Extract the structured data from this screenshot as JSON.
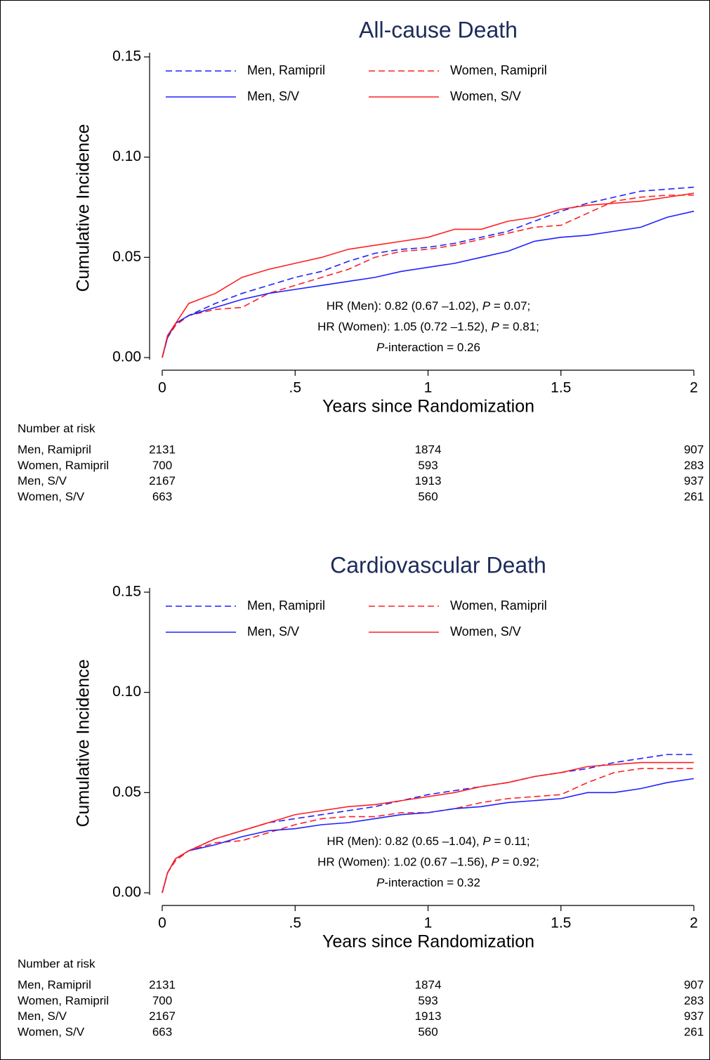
{
  "chart_data": [
    {
      "type": "line",
      "title": "All-cause Death",
      "xlabel": "Years since Randomization",
      "ylabel": "Cumulative Incidence",
      "x": [
        0,
        0.02,
        0.05,
        0.1,
        0.2,
        0.3,
        0.4,
        0.5,
        0.6,
        0.7,
        0.8,
        0.9,
        1.0,
        1.1,
        1.2,
        1.3,
        1.4,
        1.5,
        1.6,
        1.7,
        1.8,
        1.9,
        2.0
      ],
      "series": [
        {
          "name": "Men, Ramipril",
          "color": "#2020ff",
          "linestyle": "dashed",
          "values": [
            0,
            0.01,
            0.017,
            0.021,
            0.027,
            0.032,
            0.036,
            0.04,
            0.043,
            0.048,
            0.052,
            0.054,
            0.055,
            0.057,
            0.06,
            0.063,
            0.068,
            0.073,
            0.077,
            0.08,
            0.083,
            0.084,
            0.085
          ]
        },
        {
          "name": "Women, Ramipril",
          "color": "#ff2020",
          "linestyle": "dashed",
          "values": [
            0,
            0.01,
            0.016,
            0.021,
            0.024,
            0.025,
            0.032,
            0.036,
            0.04,
            0.044,
            0.05,
            0.053,
            0.054,
            0.056,
            0.059,
            0.062,
            0.065,
            0.066,
            0.072,
            0.078,
            0.08,
            0.081,
            0.081
          ]
        },
        {
          "name": "Men, S/V",
          "color": "#2020ff",
          "linestyle": "solid",
          "values": [
            0,
            0.01,
            0.017,
            0.021,
            0.025,
            0.029,
            0.032,
            0.034,
            0.036,
            0.038,
            0.04,
            0.043,
            0.045,
            0.047,
            0.05,
            0.053,
            0.058,
            0.06,
            0.061,
            0.063,
            0.065,
            0.07,
            0.073
          ]
        },
        {
          "name": "Women, S/V",
          "color": "#ff2020",
          "linestyle": "solid",
          "values": [
            0,
            0.011,
            0.017,
            0.027,
            0.032,
            0.04,
            0.044,
            0.047,
            0.05,
            0.054,
            0.056,
            0.058,
            0.06,
            0.064,
            0.064,
            0.068,
            0.07,
            0.074,
            0.076,
            0.077,
            0.078,
            0.08,
            0.082
          ]
        }
      ],
      "xlim": [
        0,
        2
      ],
      "ylim": [
        0,
        0.15
      ],
      "xticks": [
        0,
        {
          "value": 0.5,
          "label": ".5"
        },
        1,
        1.5,
        2
      ],
      "yticks": [
        {
          "value": 0,
          "label": "0.00"
        },
        {
          "value": 0.05,
          "label": "0.05"
        },
        {
          "value": 0.1,
          "label": "0.10"
        },
        {
          "value": 0.15,
          "label": "0.15"
        }
      ],
      "annotation": [
        [
          {
            "text": "HR (Men): 0.82 (0.67 –1.02), "
          },
          {
            "text": "P",
            "italic": true
          },
          {
            "text": " = 0.07;"
          }
        ],
        [
          {
            "text": "HR (Women): 1.05 (0.72 –1.52), "
          },
          {
            "text": "P",
            "italic": true
          },
          {
            "text": " = 0.81;"
          }
        ],
        [
          {
            "text": "P",
            "italic": true
          },
          {
            "text": "-interaction = 0.26"
          }
        ]
      ],
      "risk_table": {
        "title": "Number at risk",
        "times": [
          0,
          1,
          2
        ],
        "rows": [
          {
            "name": "Men, Ramipril",
            "values": [
              2131,
              1874,
              907
            ]
          },
          {
            "name": "Women, Ramipril",
            "values": [
              700,
              593,
              283
            ]
          },
          {
            "name": "Men, S/V",
            "values": [
              2167,
              1913,
              937
            ]
          },
          {
            "name": "Women, S/V",
            "values": [
              663,
              560,
              261
            ]
          }
        ]
      }
    },
    {
      "type": "line",
      "title": "Cardiovascular Death",
      "xlabel": "Years since Randomization",
      "ylabel": "Cumulative Incidence",
      "x": [
        0,
        0.02,
        0.05,
        0.1,
        0.2,
        0.3,
        0.4,
        0.5,
        0.6,
        0.7,
        0.8,
        0.9,
        1.0,
        1.1,
        1.2,
        1.3,
        1.4,
        1.5,
        1.6,
        1.7,
        1.8,
        1.9,
        2.0
      ],
      "series": [
        {
          "name": "Men, Ramipril",
          "color": "#2020ff",
          "linestyle": "dashed",
          "values": [
            0,
            0.01,
            0.017,
            0.021,
            0.027,
            0.031,
            0.035,
            0.037,
            0.039,
            0.041,
            0.043,
            0.046,
            0.049,
            0.051,
            0.053,
            0.055,
            0.058,
            0.06,
            0.062,
            0.065,
            0.067,
            0.069,
            0.069
          ]
        },
        {
          "name": "Women, Ramipril",
          "color": "#ff2020",
          "linestyle": "dashed",
          "values": [
            0,
            0.01,
            0.016,
            0.021,
            0.025,
            0.026,
            0.03,
            0.034,
            0.037,
            0.038,
            0.038,
            0.04,
            0.04,
            0.042,
            0.045,
            0.047,
            0.048,
            0.049,
            0.055,
            0.06,
            0.062,
            0.062,
            0.062
          ]
        },
        {
          "name": "Men, S/V",
          "color": "#2020ff",
          "linestyle": "solid",
          "values": [
            0,
            0.01,
            0.017,
            0.021,
            0.024,
            0.028,
            0.031,
            0.032,
            0.034,
            0.035,
            0.037,
            0.039,
            0.04,
            0.042,
            0.043,
            0.045,
            0.046,
            0.047,
            0.05,
            0.05,
            0.052,
            0.055,
            0.057
          ]
        },
        {
          "name": "Women, S/V",
          "color": "#ff2020",
          "linestyle": "solid",
          "values": [
            0,
            0.01,
            0.017,
            0.021,
            0.027,
            0.031,
            0.035,
            0.039,
            0.041,
            0.043,
            0.044,
            0.046,
            0.048,
            0.05,
            0.053,
            0.055,
            0.058,
            0.06,
            0.063,
            0.064,
            0.065,
            0.065,
            0.065
          ]
        }
      ],
      "xlim": [
        0,
        2
      ],
      "ylim": [
        0,
        0.15
      ],
      "xticks": [
        0,
        {
          "value": 0.5,
          "label": ".5"
        },
        1,
        1.5,
        2
      ],
      "yticks": [
        {
          "value": 0,
          "label": "0.00"
        },
        {
          "value": 0.05,
          "label": "0.05"
        },
        {
          "value": 0.1,
          "label": "0.10"
        },
        {
          "value": 0.15,
          "label": "0.15"
        }
      ],
      "annotation": [
        [
          {
            "text": "HR (Men): 0.82 (0.65 –1.04), "
          },
          {
            "text": "P",
            "italic": true
          },
          {
            "text": " = 0.11;"
          }
        ],
        [
          {
            "text": "HR (Women): 1.02 (0.67 –1.56), "
          },
          {
            "text": "P",
            "italic": true
          },
          {
            "text": " = 0.92;"
          }
        ],
        [
          {
            "text": "P",
            "italic": true
          },
          {
            "text": "-interaction = 0.32"
          }
        ]
      ],
      "risk_table": {
        "title": "Number at risk",
        "times": [
          0,
          1,
          2
        ],
        "rows": [
          {
            "name": "Men, Ramipril",
            "values": [
              2131,
              1874,
              907
            ]
          },
          {
            "name": "Women, Ramipril",
            "values": [
              700,
              593,
              283
            ]
          },
          {
            "name": "Men, S/V",
            "values": [
              2167,
              1913,
              937
            ]
          },
          {
            "name": "Women, S/V",
            "values": [
              663,
              560,
              261
            ]
          }
        ]
      }
    }
  ]
}
